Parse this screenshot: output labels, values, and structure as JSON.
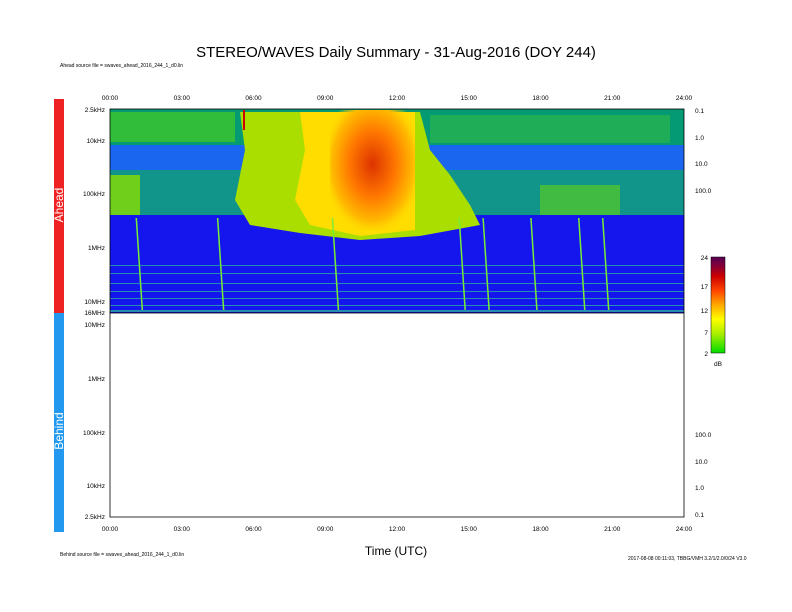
{
  "chart_data": {
    "type": "heatmap",
    "title": "STEREO/WAVES Daily Summary - 31-Aug-2016 (DOY 244)",
    "xlabel": "Time (UTC)",
    "x_ticks": [
      "00:00",
      "03:00",
      "06:00",
      "09:00",
      "12:00",
      "15:00",
      "18:00",
      "21:00",
      "24:00"
    ],
    "panels": [
      {
        "name": "Ahead",
        "source_label": "Ahead source file = swaves_ahead_2016_244_1_d0.lin",
        "y_ticks": [
          "2.5kHz",
          "10kHz",
          "100kHz",
          "1MHz",
          "10MHz",
          "16MHz"
        ],
        "right_ticks": [
          "0.1",
          "1.0",
          "10.0",
          "100.0"
        ],
        "has_data": true,
        "features": [
          {
            "label": "type III radio burst",
            "time_hours": 1.1
          },
          {
            "label": "type III radio burst",
            "time_hours": 4.5
          },
          {
            "label": "type III radio burst",
            "time_hours": 9.3
          },
          {
            "label": "type III radio burst",
            "time_hours": 14.6
          },
          {
            "label": "type III radio burst",
            "time_hours": 15.6
          },
          {
            "label": "type III radio burst",
            "time_hours": 17.6
          },
          {
            "label": "type III radio burst",
            "time_hours": 19.6
          },
          {
            "label": "type III radio burst",
            "time_hours": 20.6
          }
        ]
      },
      {
        "name": "Behind",
        "source_label": "Behind source file = swaves_ahead_2016_244_1_d0.lin",
        "y_ticks": [
          "10MHz",
          "1MHz",
          "100kHz",
          "10kHz",
          "2.5kHz"
        ],
        "right_ticks": [
          "100.0",
          "10.0",
          "1.0",
          "0.1"
        ],
        "has_data": false
      }
    ],
    "colorbar": {
      "ticks": [
        "24",
        "17",
        "12",
        "7",
        "2"
      ],
      "unit": "dB",
      "range": [
        2,
        24
      ],
      "colors": [
        "#00dd00",
        "#aaee00",
        "#ffff00",
        "#ffaa00",
        "#ff4400",
        "#cc0000",
        "#880033",
        "#550055"
      ]
    }
  },
  "footer": {
    "right_note": "2017-08-08 00:11:03, TBBG/VMH 3.2/1/2.0/0/24 V3.0"
  }
}
